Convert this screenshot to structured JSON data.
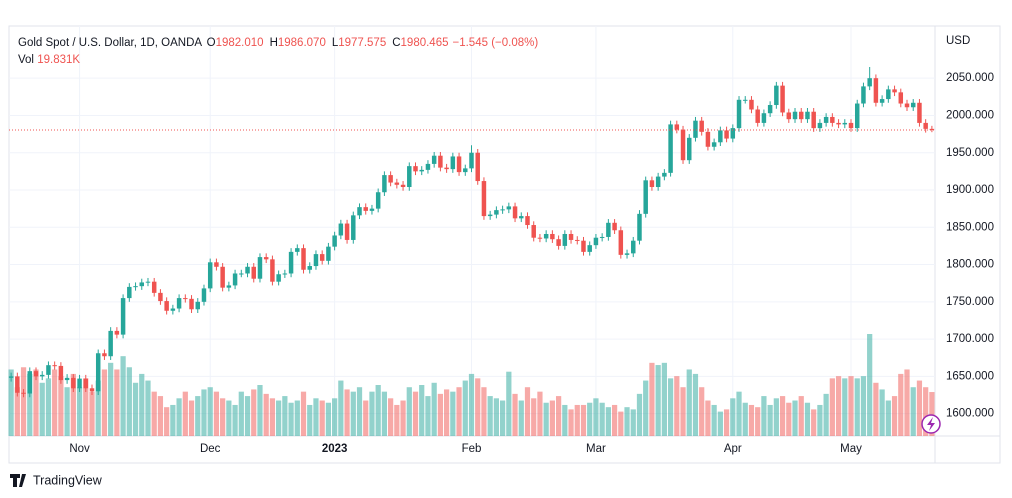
{
  "chart_data": {
    "type": "candlestick",
    "symbol": "Gold Spot / U.S. Dollar, 1D, OANDA",
    "ohlc_legend": [
      {
        "key": "O",
        "label": "1982.010"
      },
      {
        "key": "H",
        "label": "1986.070"
      },
      {
        "key": "L",
        "label": "1977.575"
      },
      {
        "key": "C",
        "label": "1980.465"
      }
    ],
    "change": "−1.545 (−0.08%)",
    "volume_key": "Vol",
    "volume_last": "19.831K",
    "currency": "USD",
    "branding": "TradingView",
    "up_color": "#26a69a",
    "down_color": "#ef5350",
    "grid": true,
    "ylim": [
      1570,
      2120
    ],
    "yticks": [
      {
        "value": 1600,
        "label": "1600.000"
      },
      {
        "value": 1650,
        "label": "1650.000"
      },
      {
        "value": 1700,
        "label": "1700.000"
      },
      {
        "value": 1750,
        "label": "1750.000"
      },
      {
        "value": 1800,
        "label": "1800.000"
      },
      {
        "value": 1850,
        "label": "1850.000"
      },
      {
        "value": 1900,
        "label": "1900.000"
      },
      {
        "value": 1950,
        "label": "1950.000"
      },
      {
        "value": 2000,
        "label": "2000.000"
      },
      {
        "value": 2050,
        "label": "2050.000"
      }
    ],
    "categories": [
      null,
      null,
      null,
      null,
      null,
      null,
      null,
      null,
      null,
      null,
      null,
      "Nov",
      null,
      null,
      null,
      null,
      null,
      null,
      null,
      null,
      null,
      null,
      null,
      null,
      null,
      null,
      null,
      null,
      null,
      null,
      null,
      null,
      "Dec",
      null,
      null,
      null,
      null,
      null,
      null,
      null,
      null,
      null,
      null,
      null,
      null,
      null,
      null,
      null,
      null,
      null,
      null,
      null,
      "2023",
      null,
      null,
      null,
      null,
      null,
      null,
      null,
      null,
      null,
      null,
      null,
      null,
      null,
      null,
      null,
      null,
      null,
      null,
      null,
      null,
      null,
      "Feb",
      null,
      null,
      null,
      null,
      null,
      null,
      null,
      null,
      null,
      null,
      null,
      null,
      null,
      null,
      null,
      null,
      null,
      null,
      null,
      "Mar",
      null,
      null,
      null,
      null,
      null,
      null,
      null,
      null,
      null,
      null,
      null,
      null,
      null,
      null,
      null,
      null,
      null,
      null,
      null,
      null,
      null,
      "Apr",
      null,
      null,
      null,
      null,
      null,
      null,
      null,
      null,
      null,
      null,
      null,
      null,
      null,
      null,
      null,
      null,
      null,
      null,
      "May",
      null,
      null,
      null,
      null,
      null,
      null,
      null,
      null,
      null,
      null,
      null,
      null,
      null
    ],
    "open": [
      1648,
      1650,
      1628,
      1627,
      1657,
      1650,
      1652,
      1665,
      1664,
      1645,
      1648,
      1634,
      1647,
      1634,
      1630,
      1681,
      1677,
      1711,
      1706,
      1755,
      1770,
      1771,
      1776,
      1777,
      1762,
      1751,
      1738,
      1741,
      1755,
      1754,
      1740,
      1750,
      1768,
      1803,
      1797,
      1769,
      1772,
      1788,
      1788,
      1797,
      1781,
      1810,
      1807,
      1777,
      1787,
      1788,
      1817,
      1822,
      1793,
      1798,
      1814,
      1805,
      1824,
      1839,
      1855,
      1833,
      1866,
      1877,
      1872,
      1875,
      1897,
      1920,
      1910,
      1907,
      1904,
      1932,
      1925,
      1927,
      1935,
      1946,
      1930,
      1928,
      1945,
      1924,
      1929,
      1950,
      1912,
      1865,
      1867,
      1873,
      1874,
      1878,
      1862,
      1865,
      1853,
      1836,
      1835,
      1841,
      1834,
      1825,
      1841,
      1833,
      1832,
      1817,
      1826,
      1836,
      1837,
      1856,
      1846,
      1813,
      1815,
      1832,
      1868,
      1913,
      1904,
      1918,
      1923,
      1988,
      1981,
      1940,
      1970,
      1993,
      1978,
      1958,
      1964,
      1980,
      1969,
      1983,
      2021,
      2021,
      2008,
      1990,
      2003,
      2014,
      2040,
      2004,
      1995,
      2005,
      1995,
      2005,
      1983,
      1990,
      1998,
      1990,
      1988,
      1990,
      1983,
      2016,
      2039,
      2050,
      2017,
      2022,
      2035,
      2031,
      2016,
      2011,
      2017,
      1990,
      1982.01
    ],
    "high": [
      1655,
      1655,
      1633,
      1662,
      1662,
      1657,
      1670,
      1670,
      1669,
      1653,
      1653,
      1652,
      1652,
      1639,
      1686,
      1686,
      1716,
      1716,
      1760,
      1775,
      1776,
      1781,
      1782,
      1782,
      1767,
      1756,
      1746,
      1760,
      1760,
      1759,
      1755,
      1773,
      1808,
      1808,
      1802,
      1777,
      1793,
      1793,
      1802,
      1802,
      1815,
      1815,
      1812,
      1792,
      1793,
      1822,
      1827,
      1827,
      1803,
      1819,
      1819,
      1829,
      1844,
      1860,
      1860,
      1871,
      1882,
      1882,
      1880,
      1902,
      1925,
      1925,
      1915,
      1912,
      1937,
      1937,
      1932,
      1940,
      1951,
      1951,
      1935,
      1950,
      1950,
      1934,
      1960,
      1955,
      1917,
      1872,
      1878,
      1879,
      1883,
      1883,
      1870,
      1870,
      1858,
      1841,
      1846,
      1846,
      1839,
      1846,
      1846,
      1838,
      1837,
      1831,
      1841,
      1842,
      1861,
      1861,
      1851,
      1820,
      1837,
      1873,
      1918,
      1918,
      1923,
      1928,
      1993,
      1993,
      1986,
      1975,
      1998,
      1998,
      1983,
      1969,
      1985,
      1985,
      1988,
      2026,
      2026,
      2026,
      2013,
      2008,
      2019,
      2045,
      2045,
      2009,
      2010,
      2010,
      2010,
      2010,
      1995,
      2003,
      2003,
      1995,
      1995,
      1995,
      2021,
      2044,
      2065,
      2055,
      2027,
      2040,
      2040,
      2036,
      2021,
      2022,
      2022,
      1995,
      1986.07
    ],
    "low": [
      1643,
      1623,
      1622,
      1622,
      1645,
      1645,
      1647,
      1659,
      1640,
      1640,
      1629,
      1629,
      1629,
      1625,
      1625,
      1672,
      1672,
      1701,
      1701,
      1750,
      1765,
      1766,
      1771,
      1757,
      1746,
      1733,
      1733,
      1736,
      1749,
      1735,
      1735,
      1745,
      1763,
      1792,
      1764,
      1764,
      1767,
      1783,
      1783,
      1776,
      1776,
      1802,
      1772,
      1772,
      1782,
      1783,
      1812,
      1788,
      1788,
      1793,
      1800,
      1800,
      1819,
      1834,
      1828,
      1828,
      1861,
      1867,
      1867,
      1870,
      1892,
      1905,
      1902,
      1899,
      1899,
      1920,
      1920,
      1922,
      1930,
      1925,
      1923,
      1923,
      1919,
      1919,
      1924,
      1907,
      1860,
      1860,
      1862,
      1868,
      1869,
      1857,
      1857,
      1848,
      1831,
      1830,
      1830,
      1829,
      1820,
      1820,
      1828,
      1827,
      1812,
      1812,
      1821,
      1831,
      1832,
      1841,
      1808,
      1808,
      1810,
      1827,
      1863,
      1899,
      1899,
      1913,
      1918,
      1976,
      1935,
      1935,
      1965,
      1973,
      1953,
      1953,
      1959,
      1964,
      1964,
      1978,
      2016,
      2003,
      1985,
      1985,
      1998,
      2009,
      1999,
      1990,
      1990,
      1990,
      1990,
      1978,
      1978,
      1985,
      1985,
      1983,
      1983,
      1978,
      1978,
      2011,
      2034,
      2012,
      2012,
      2017,
      2026,
      2011,
      2006,
      2006,
      1985,
      1977,
      1977.575
    ],
    "close": [
      1650,
      1628,
      1627,
      1657,
      1650,
      1652,
      1665,
      1664,
      1645,
      1648,
      1634,
      1647,
      1634,
      1630,
      1681,
      1677,
      1711,
      1706,
      1755,
      1770,
      1771,
      1776,
      1777,
      1762,
      1751,
      1738,
      1741,
      1755,
      1754,
      1740,
      1750,
      1768,
      1803,
      1797,
      1769,
      1772,
      1788,
      1788,
      1797,
      1781,
      1810,
      1807,
      1777,
      1787,
      1788,
      1817,
      1822,
      1793,
      1798,
      1814,
      1805,
      1824,
      1839,
      1855,
      1833,
      1866,
      1877,
      1872,
      1875,
      1897,
      1920,
      1910,
      1907,
      1904,
      1932,
      1925,
      1927,
      1935,
      1946,
      1930,
      1928,
      1945,
      1924,
      1929,
      1950,
      1912,
      1865,
      1867,
      1873,
      1874,
      1878,
      1862,
      1865,
      1853,
      1836,
      1835,
      1841,
      1834,
      1825,
      1841,
      1833,
      1832,
      1817,
      1826,
      1836,
      1837,
      1856,
      1846,
      1813,
      1815,
      1832,
      1868,
      1913,
      1904,
      1918,
      1923,
      1988,
      1981,
      1940,
      1970,
      1993,
      1978,
      1958,
      1964,
      1980,
      1969,
      1983,
      2021,
      2021,
      2008,
      1990,
      2003,
      2014,
      2040,
      2004,
      1995,
      2005,
      1995,
      2005,
      1983,
      1990,
      1998,
      1990,
      1988,
      1990,
      1983,
      2016,
      2039,
      2050,
      2017,
      2022,
      2035,
      2031,
      2016,
      2011,
      2017,
      1990,
      1982,
      1980.465
    ],
    "volume": [
      30000,
      22000,
      31000,
      28000,
      30000,
      24000,
      26000,
      30000,
      27000,
      22000,
      28000,
      22000,
      26000,
      20000,
      25000,
      30000,
      33000,
      30000,
      36000,
      31000,
      24000,
      28000,
      25000,
      20000,
      18000,
      13000,
      14000,
      17000,
      20000,
      16000,
      18000,
      21000,
      22000,
      20000,
      17000,
      16000,
      14000,
      20000,
      18000,
      21000,
      23000,
      19000,
      17000,
      16000,
      18000,
      15000,
      16000,
      20000,
      14000,
      17000,
      16000,
      15000,
      17000,
      25000,
      21000,
      20000,
      22000,
      16000,
      20000,
      23000,
      20000,
      17000,
      14000,
      16000,
      22000,
      20000,
      23000,
      18000,
      24000,
      19000,
      21000,
      20000,
      22000,
      25000,
      28000,
      26000,
      22000,
      18000,
      17000,
      16000,
      29000,
      19000,
      16000,
      22000,
      17000,
      20000,
      15000,
      16000,
      18000,
      14000,
      12000,
      14000,
      14000,
      15000,
      17000,
      15000,
      13000,
      14000,
      11000,
      13000,
      12000,
      19000,
      25000,
      33000,
      32000,
      33000,
      26000,
      27000,
      22000,
      30000,
      28000,
      22000,
      16000,
      14000,
      11000,
      12000,
      17000,
      20000,
      15000,
      14000,
      13000,
      18000,
      14000,
      17000,
      18000,
      15000,
      16000,
      18000,
      15000,
      12000,
      14000,
      19000,
      26000,
      27000,
      26000,
      27000,
      26000,
      27000,
      46000,
      24000,
      21000,
      16000,
      18000,
      28000,
      30000,
      22000,
      25000,
      22000,
      19831
    ]
  }
}
